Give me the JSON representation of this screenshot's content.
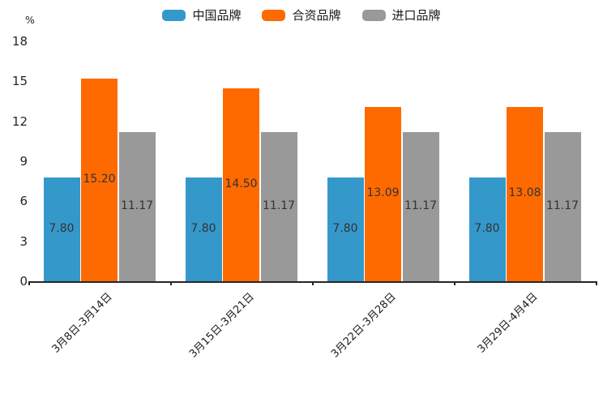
{
  "chart_data": {
    "type": "bar",
    "title": "",
    "ylabel": "%",
    "xlabel": "",
    "categories": [
      "3月8日-3月14日",
      "3月15日-3月21日",
      "3月22日-3月28日",
      "3月29日-4月4日"
    ],
    "series": [
      {
        "name": "中国品牌",
        "color": "#3598cb",
        "values": [
          7.8,
          7.8,
          7.8,
          7.8
        ],
        "labels": [
          "7.80",
          "7.80",
          "7.80",
          "7.80"
        ]
      },
      {
        "name": "合资品牌",
        "color": "#ff6a00",
        "values": [
          15.2,
          14.5,
          13.09,
          13.08
        ],
        "labels": [
          "15.20",
          "14.50",
          "13.09",
          "13.08"
        ]
      },
      {
        "name": "进口品牌",
        "color": "#999999",
        "values": [
          11.17,
          11.17,
          11.17,
          11.17
        ],
        "labels": [
          "11.17",
          "11.17",
          "11.17",
          "11.17"
        ]
      }
    ],
    "yticks": [
      0,
      3,
      6,
      9,
      12,
      15,
      18
    ],
    "ylim": [
      0,
      18
    ],
    "legend_position": "top-center",
    "grid": false,
    "value_labels_position": "inside-center",
    "colors": {
      "background": "#ffffff",
      "axis": "#262626",
      "tick_text": "#262626",
      "value_label_text": "#333333",
      "legend_text": "#1a1a1a"
    }
  }
}
